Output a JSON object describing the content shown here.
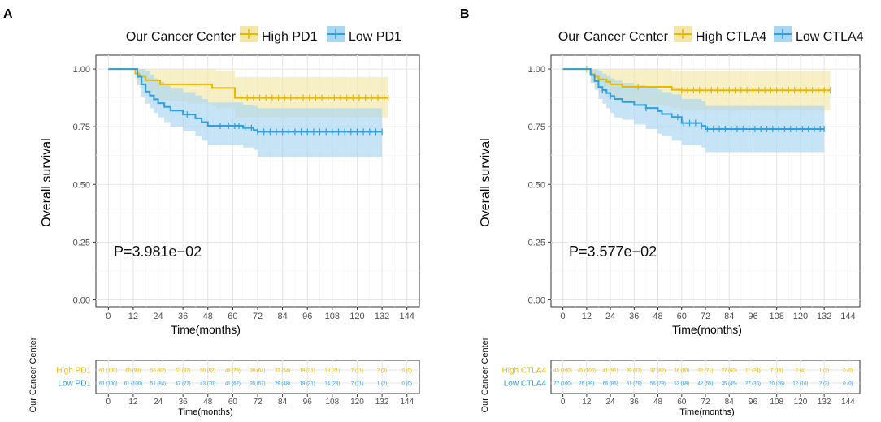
{
  "colors": {
    "high": "#E7B800",
    "low": "#2E9FDF",
    "high_fill": "#F3E6A6",
    "low_fill": "#A9D6F2",
    "grid": "#E6E6E6",
    "axis_text": "#4D4D4D"
  },
  "chart_data": [
    {
      "type": "line",
      "panel_label": "A",
      "legend_title": "Our Cancer Center",
      "legend": [
        "High PD1",
        "Low PD1"
      ],
      "xlabel": "Time(months)",
      "ylabel": "Overall survival",
      "xticks": [
        "0",
        "12",
        "24",
        "36",
        "48",
        "60",
        "72",
        "84",
        "96",
        "108",
        "120",
        "132",
        "144"
      ],
      "yticks": [
        "0.00",
        "0.25",
        "0.50",
        "0.75",
        "1.00"
      ],
      "xlim": [
        -6,
        150
      ],
      "ylim": [
        -0.03,
        1.06
      ],
      "pvalue": "P=3.981e−02",
      "series": [
        {
          "name": "High PD1",
          "x": [
            0,
            12,
            13,
            15,
            18,
            21,
            25,
            38,
            50,
            52,
            61,
            135
          ],
          "y": [
            1,
            1,
            0.98,
            0.967,
            0.952,
            0.951,
            0.934,
            0.934,
            0.918,
            0.918,
            0.875,
            0.875
          ],
          "upper": [
            1,
            1,
            1,
            1,
            1,
            1,
            1,
            1,
            1,
            0.99,
            0.965,
            0.965
          ],
          "lower": [
            1,
            1,
            0.95,
            0.92,
            0.89,
            0.87,
            0.86,
            0.85,
            0.84,
            0.83,
            0.79,
            0.79
          ],
          "censor": [
            64,
            67,
            70,
            73,
            76,
            79,
            82,
            85,
            88,
            91,
            94,
            97,
            100,
            103,
            106,
            109,
            112,
            115,
            118,
            121,
            124,
            127,
            130,
            133,
            135
          ]
        },
        {
          "name": "Low PD1",
          "x": [
            0,
            12,
            14,
            16,
            18,
            20,
            22,
            24,
            27,
            30,
            36,
            42,
            45,
            48,
            60,
            65,
            70,
            72,
            132
          ],
          "y": [
            1,
            1,
            0.967,
            0.934,
            0.902,
            0.885,
            0.869,
            0.852,
            0.836,
            0.82,
            0.803,
            0.786,
            0.77,
            0.754,
            0.754,
            0.745,
            0.735,
            0.728,
            0.728
          ],
          "upper": [
            1,
            1,
            1,
            1,
            0.99,
            0.975,
            0.96,
            0.945,
            0.93,
            0.915,
            0.9,
            0.885,
            0.87,
            0.855,
            0.855,
            0.845,
            0.84,
            0.83,
            0.83
          ],
          "lower": [
            1,
            1,
            0.93,
            0.88,
            0.85,
            0.83,
            0.81,
            0.79,
            0.77,
            0.75,
            0.73,
            0.71,
            0.69,
            0.67,
            0.67,
            0.66,
            0.65,
            0.62,
            0.62
          ],
          "censor": [
            22,
            38,
            54,
            58,
            61,
            63,
            66,
            69,
            72,
            75,
            78,
            81,
            84,
            87,
            90,
            93,
            96,
            99,
            102,
            105,
            108,
            111,
            114,
            117,
            120,
            123,
            126,
            129,
            132
          ]
        }
      ],
      "risk_table": {
        "title": "Our Cancer Center",
        "rows": [
          {
            "label": "High PD1",
            "values": [
              "61 (100)",
              "60 (98)",
              "56 (92)",
              "53 (87)",
              "50 (82)",
              "48 (79)",
              "39 (64)",
              "33 (54)",
              "19 (31)",
              "13 (21)",
              "7 (11)",
              "2 (3)",
              "0 (0)"
            ]
          },
          {
            "label": "Low PD1",
            "values": [
              "61 (100)",
              "61 (100)",
              "51 (84)",
              "47 (77)",
              "43 (70)",
              "41 (67)",
              "35 (57)",
              "29 (48)",
              "19 (31)",
              "14 (23)",
              "7 (11)",
              "1 (2)",
              "0 (0)"
            ]
          }
        ],
        "xlabel": "Time(months)"
      }
    },
    {
      "type": "line",
      "panel_label": "B",
      "legend_title": "Our Cancer Center",
      "legend": [
        "High CTLA4",
        "Low CTLA4"
      ],
      "xlabel": "Time(months)",
      "ylabel": "Overall survival",
      "xticks": [
        "0",
        "12",
        "24",
        "36",
        "48",
        "60",
        "72",
        "84",
        "96",
        "108",
        "120",
        "132",
        "144"
      ],
      "yticks": [
        "0.00",
        "0.25",
        "0.50",
        "0.75",
        "1.00"
      ],
      "xlim": [
        -6,
        150
      ],
      "ylim": [
        -0.03,
        1.06
      ],
      "pvalue": "P=3.577e−02",
      "series": [
        {
          "name": "High CTLA4",
          "x": [
            0,
            12,
            14,
            16,
            18,
            22,
            24,
            27,
            30,
            40,
            55,
            60,
            135
          ],
          "y": [
            1,
            1,
            0.978,
            0.967,
            0.956,
            0.945,
            0.934,
            0.934,
            0.923,
            0.923,
            0.91,
            0.908,
            0.908
          ],
          "upper": [
            1,
            1,
            1,
            1,
            1,
            1,
            1,
            1,
            1,
            1,
            0.99,
            0.99,
            0.99
          ],
          "lower": [
            1,
            1,
            0.94,
            0.92,
            0.9,
            0.88,
            0.87,
            0.86,
            0.85,
            0.84,
            0.83,
            0.82,
            0.82
          ],
          "censor": [
            12,
            38,
            60,
            63,
            66,
            69,
            72,
            75,
            78,
            81,
            84,
            87,
            90,
            93,
            96,
            99,
            102,
            105,
            108,
            111,
            114,
            117,
            120,
            123,
            126,
            129,
            132,
            135
          ]
        },
        {
          "name": "Low CTLA4",
          "x": [
            0,
            12,
            14,
            16,
            18,
            20,
            22,
            24,
            26,
            30,
            36,
            42,
            48,
            50,
            55,
            60,
            70,
            72,
            132
          ],
          "y": [
            1,
            1,
            0.974,
            0.948,
            0.922,
            0.909,
            0.896,
            0.883,
            0.87,
            0.857,
            0.844,
            0.831,
            0.818,
            0.805,
            0.792,
            0.766,
            0.753,
            0.74,
            0.74
          ],
          "upper": [
            1,
            1,
            1,
            1,
            0.99,
            0.98,
            0.97,
            0.96,
            0.95,
            0.94,
            0.93,
            0.92,
            0.91,
            0.9,
            0.89,
            0.87,
            0.86,
            0.84,
            0.84
          ],
          "lower": [
            1,
            1,
            0.94,
            0.91,
            0.87,
            0.85,
            0.83,
            0.81,
            0.79,
            0.78,
            0.76,
            0.74,
            0.72,
            0.71,
            0.69,
            0.67,
            0.66,
            0.64,
            0.64
          ],
          "censor": [
            20,
            24,
            42,
            58,
            61,
            64,
            67,
            70,
            73,
            76,
            79,
            82,
            85,
            88,
            91,
            94,
            97,
            100,
            103,
            106,
            109,
            112,
            115,
            118,
            121,
            124,
            127,
            130,
            132
          ]
        }
      ],
      "risk_table": {
        "title": "Our Cancer Center",
        "rows": [
          {
            "label": "High CTLA4",
            "values": [
              "45 (100)",
              "45 (100)",
              "41 (91)",
              "39 (87)",
              "37 (82)",
              "36 (80)",
              "32 (71)",
              "27 (60)",
              "11 (24)",
              "7 (16)",
              "2 (4)",
              "1 (2)",
              "0 (0)"
            ]
          },
          {
            "label": "Low CTLA4",
            "values": [
              "77 (100)",
              "76 (99)",
              "66 (86)",
              "61 (79)",
              "56 (73)",
              "53 (69)",
              "42 (55)",
              "35 (45)",
              "27 (35)",
              "20 (26)",
              "12 (16)",
              "2 (3)",
              "0 (0)"
            ]
          }
        ],
        "xlabel": "Time(months)"
      }
    }
  ]
}
